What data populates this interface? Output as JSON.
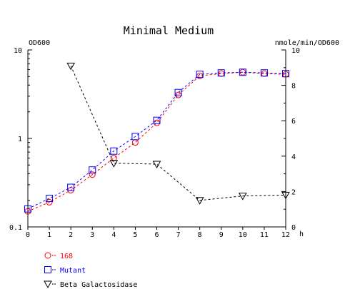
{
  "chart_data": {
    "type": "line",
    "title": "Minimal Medium",
    "xlabel": "h",
    "ylabel_left": "OD600",
    "ylabel_right": "nmole/min/OD600",
    "x_ticks": [
      "0",
      "1",
      "2",
      "3",
      "4",
      "5",
      "6",
      "7",
      "8",
      "9",
      "10",
      "11",
      "12"
    ],
    "xlim": [
      0,
      12
    ],
    "y_left": {
      "scale": "log",
      "lim": [
        0.1,
        10
      ],
      "ticks": [
        "0.1",
        "1",
        "10"
      ]
    },
    "y_right": {
      "scale": "linear",
      "lim": [
        0,
        10
      ],
      "ticks": [
        "0",
        "2",
        "4",
        "6",
        "8",
        "10"
      ]
    },
    "grid": false,
    "legend_position": "bottom-left",
    "series": [
      {
        "name": "168",
        "axis": "left",
        "marker": "circle",
        "color": "#ff0000",
        "x": [
          0,
          1,
          2,
          3,
          4,
          5,
          6,
          7,
          8,
          9,
          10,
          11,
          12
        ],
        "y": [
          0.15,
          0.19,
          0.26,
          0.39,
          0.6,
          0.9,
          1.5,
          3.1,
          5.1,
          5.4,
          5.6,
          5.4,
          5.3
        ]
      },
      {
        "name": "Mutant",
        "axis": "left",
        "marker": "square",
        "color": "#0000ff",
        "x": [
          0,
          1,
          2,
          3,
          4,
          5,
          6,
          7,
          8,
          9,
          10,
          11,
          12
        ],
        "y": [
          0.16,
          0.21,
          0.28,
          0.44,
          0.72,
          1.05,
          1.6,
          3.3,
          5.3,
          5.5,
          5.6,
          5.5,
          5.4
        ]
      },
      {
        "name": "Beta Galactosidase",
        "axis": "right",
        "marker": "triangle-down",
        "color": "#000000",
        "x": [
          2,
          4,
          6,
          8,
          10,
          12
        ],
        "y": [
          9.1,
          3.6,
          3.55,
          1.5,
          1.75,
          1.8
        ]
      }
    ]
  }
}
